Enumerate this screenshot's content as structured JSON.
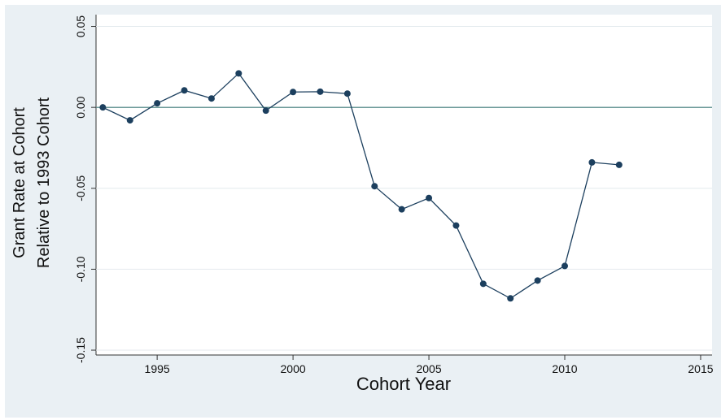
{
  "chart_data": {
    "type": "line",
    "ylabel": [
      "Grant Rate at Cohort",
      "Relative to 1993 Cohort"
    ],
    "xlabel": "Cohort Year",
    "x": [
      1993,
      1994,
      1995,
      1996,
      1997,
      1998,
      1999,
      2000,
      2001,
      2002,
      2003,
      2004,
      2005,
      2006,
      2007,
      2008,
      2009,
      2010,
      2011,
      2012
    ],
    "series": [
      {
        "color": "#1c3f5e",
        "values": [
          0,
          -0.008,
          0.0025,
          0.0105,
          0.0055,
          0.021,
          -0.002,
          0.0095,
          0.0097,
          0.0085,
          -0.0487,
          -0.063,
          -0.056,
          -0.073,
          -0.109,
          -0.118,
          -0.107,
          -0.098,
          -0.034,
          -0.0355
        ]
      }
    ],
    "xlim": [
      1992.75,
      2015.42
    ],
    "ylim": [
      -0.153,
      0.0573
    ],
    "xticks": [
      1995,
      2000,
      2005,
      2010,
      2015
    ],
    "yticks": [
      {
        "value": 0.05,
        "label": "0.05"
      },
      {
        "value": 0,
        "label": "0.00"
      },
      {
        "value": -0.05,
        "label": "-0.05"
      },
      {
        "value": -0.1,
        "label": "-0.10"
      },
      {
        "value": -0.15,
        "label": "-0.15"
      }
    ],
    "reference_line": 0,
    "reference_color": "#3d7a78",
    "grid": true
  }
}
